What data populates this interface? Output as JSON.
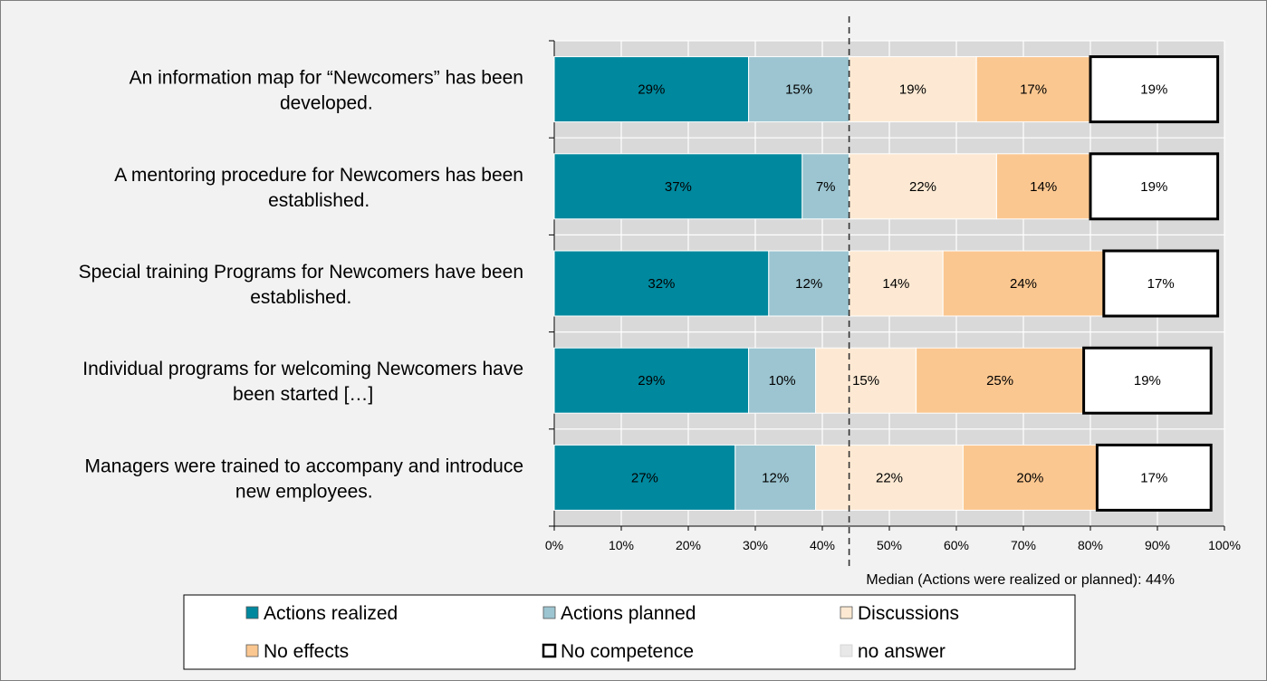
{
  "chart_data": {
    "type": "bar",
    "orientation": "horizontal",
    "stacked": true,
    "title": "",
    "xlabel": "",
    "ylabel": "",
    "xlim": [
      0,
      100
    ],
    "x_ticks": [
      "0%",
      "10%",
      "20%",
      "30%",
      "40%",
      "50%",
      "60%",
      "70%",
      "80%",
      "90%",
      "100%"
    ],
    "grid": true,
    "legend_position": "bottom",
    "categories": [
      [
        "An information map for “Newcomers” has been",
        "developed."
      ],
      [
        "A mentoring procedure for Newcomers has been",
        "established."
      ],
      [
        "Special training Programs for Newcomers have been",
        "established."
      ],
      [
        "Individual programs for welcoming Newcomers have",
        "been started […]"
      ],
      [
        "Managers were trained to accompany and introduce",
        "new employees."
      ]
    ],
    "series": [
      {
        "name": "Actions realized",
        "color": "#00889e",
        "values": [
          29,
          37,
          32,
          29,
          27
        ],
        "labels": [
          "29%",
          "37%",
          "32%",
          "29%",
          "27%"
        ]
      },
      {
        "name": "Actions planned",
        "color": "#9cc5d1",
        "values": [
          15,
          7,
          12,
          10,
          12
        ],
        "labels": [
          "15%",
          "7%",
          "12%",
          "10%",
          "12%"
        ]
      },
      {
        "name": "Discussions",
        "color": "#fde9d3",
        "values": [
          19,
          22,
          14,
          15,
          22
        ],
        "labels": [
          "19%",
          "22%",
          "14%",
          "15%",
          "22%"
        ]
      },
      {
        "name": "No effects",
        "color": "#fbc790",
        "values": [
          17,
          14,
          24,
          25,
          20
        ],
        "labels": [
          "17%",
          "14%",
          "24%",
          "25%",
          "20%"
        ]
      },
      {
        "name": "No competence",
        "color": "#ffffff",
        "values": [
          19,
          19,
          17,
          19,
          17
        ],
        "labels": [
          "19%",
          "19%",
          "17%",
          "19%",
          "17%"
        ]
      },
      {
        "name": "no answer",
        "color": "#e8e8e8",
        "values": [
          0,
          0,
          0,
          0,
          0
        ],
        "labels": [
          "",
          "",
          "",
          "",
          ""
        ]
      }
    ],
    "median": {
      "value": 44,
      "label": "Median (Actions were realized or planned): 44%"
    }
  }
}
